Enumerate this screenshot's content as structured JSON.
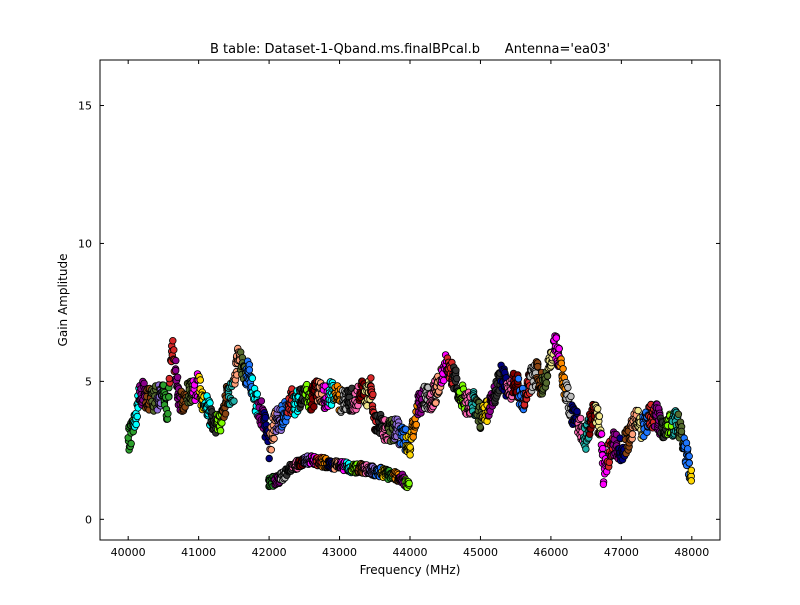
{
  "chart_data": {
    "type": "scatter",
    "title": "B table: Dataset-1-Qband.ms.finalBPcal.b      Antenna='ea03'",
    "xlabel": "Frequency (MHz)",
    "ylabel": "Gain Amplitude",
    "xlim": [
      39600,
      48400
    ],
    "ylim": [
      -0.75,
      16.65
    ],
    "xticks": [
      40000,
      41000,
      42000,
      43000,
      44000,
      45000,
      46000,
      47000,
      48000
    ],
    "yticks": [
      0,
      5,
      10,
      15
    ],
    "grid": false,
    "legend": "none",
    "marker": "circle",
    "colors": [
      "#1f77ff",
      "#ff00ff",
      "#ffd700",
      "#2ca02c",
      "#d62728",
      "#00ffff",
      "#ff8c00",
      "#8b008b",
      "#bbbbbb",
      "#333333",
      "#7cfc00",
      "#000080",
      "#8b4513",
      "#ff69b4",
      "#20b2aa",
      "#800000",
      "#ffa07a",
      "#556b2f",
      "#9370db",
      "#f0e68c"
    ],
    "upper_series": {
      "x": [
        40000,
        40100,
        40150,
        40200,
        40300,
        40400,
        40500,
        40560,
        40620,
        40650,
        40700,
        40750,
        40800,
        40900,
        41000,
        41050,
        41100,
        41200,
        41300,
        41400,
        41500,
        41550,
        41600,
        41650,
        41700,
        41800,
        41900,
        41950,
        42000,
        42050,
        42100,
        42200,
        42300,
        42400,
        42500,
        42600,
        42700,
        42800,
        42900,
        43000,
        43100,
        43200,
        43300,
        43400,
        43450,
        43500,
        43600,
        43700,
        43800,
        43900,
        44000,
        44100,
        44200,
        44300,
        44400,
        44500,
        44600,
        44700,
        44800,
        44900,
        45000,
        45100,
        45200,
        45300,
        45400,
        45500,
        45600,
        45700,
        45800,
        45900,
        46000,
        46050,
        46100,
        46200,
        46300,
        46400,
        46500,
        46600,
        46700,
        46750,
        46800,
        46900,
        47000,
        47100,
        47200,
        47300,
        47400,
        47500,
        47600,
        47700,
        47800,
        47900,
        48000
      ],
      "y": [
        2.8,
        3.6,
        4.5,
        4.6,
        4.3,
        4.4,
        4.5,
        3.8,
        6.3,
        5.8,
        4.7,
        4.2,
        4.4,
        4.6,
        4.9,
        4.4,
        4.2,
        3.6,
        3.5,
        4.4,
        4.7,
        5.9,
        5.8,
        5.1,
        5.4,
        4.3,
        3.8,
        3.3,
        2.6,
        3.2,
        3.6,
        3.7,
        4.3,
        4.2,
        4.5,
        4.4,
        4.7,
        4.4,
        4.6,
        4.3,
        4.3,
        4.3,
        4.6,
        4.4,
        4.9,
        3.6,
        3.4,
        3.2,
        3.3,
        3.0,
        2.7,
        4.0,
        4.4,
        4.3,
        4.8,
        5.6,
        5.3,
        4.6,
        4.2,
        4.3,
        3.7,
        4.0,
        4.4,
        5.2,
        4.6,
        5.0,
        4.3,
        5.0,
        5.3,
        4.7,
        5.9,
        6.4,
        6.0,
        4.8,
        3.9,
        3.5,
        2.9,
        3.9,
        3.4,
        1.6,
        2.2,
        2.8,
        2.5,
        2.9,
        3.7,
        3.3,
        3.7,
        3.8,
        3.1,
        3.4,
        3.6,
        2.6,
        1.5
      ]
    },
    "lower_series": {
      "x": [
        42000,
        42100,
        42200,
        42300,
        42400,
        42500,
        42600,
        42700,
        42800,
        42900,
        43000,
        43100,
        43200,
        43300,
        43400,
        43500,
        43600,
        43700,
        43800,
        43900,
        44000
      ],
      "y": [
        1.35,
        1.4,
        1.55,
        1.9,
        2.0,
        2.1,
        2.15,
        2.1,
        2.05,
        2.0,
        1.95,
        1.9,
        1.85,
        1.85,
        1.8,
        1.75,
        1.7,
        1.6,
        1.55,
        1.45,
        1.1
      ]
    }
  }
}
